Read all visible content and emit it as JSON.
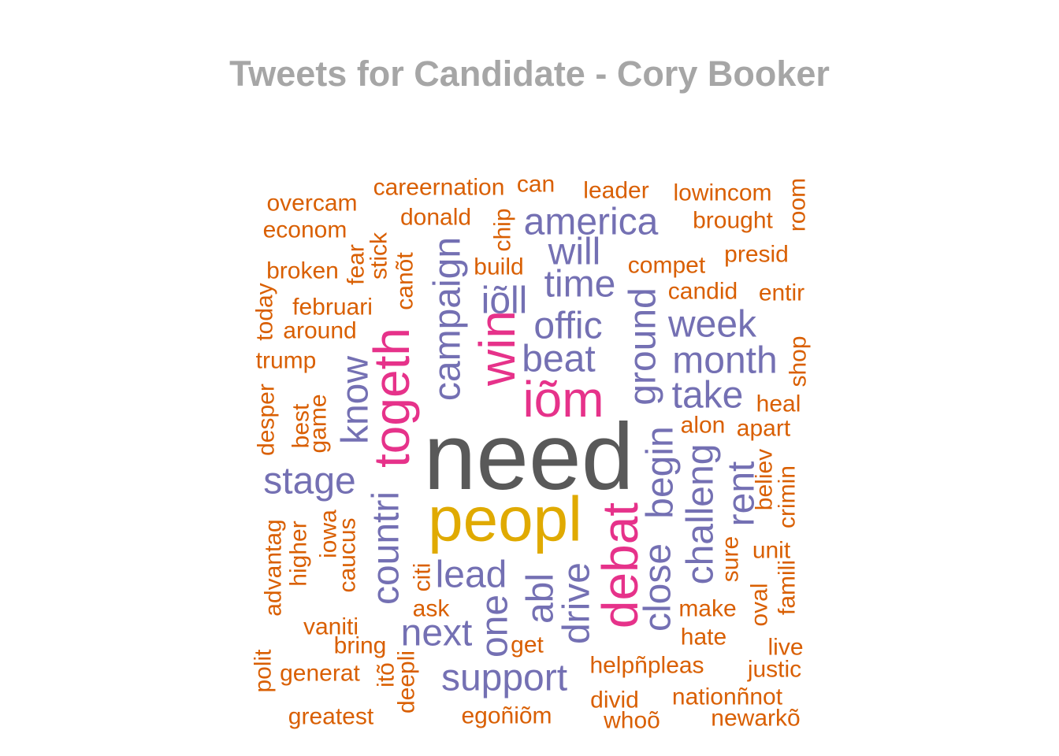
{
  "chart_data": {
    "type": "wordcloud",
    "title": "Tweets for Candidate - Cory Booker",
    "colors": {
      "title": "#a6a6a6",
      "need": "#595959",
      "peopl": "#e0aa00",
      "magenta": "#e6328a",
      "purple": "#7470b3",
      "orange": "#d95f02"
    },
    "words": [
      {
        "text": "need",
        "tier": 1,
        "color_key": "need"
      },
      {
        "text": "peopl",
        "tier": 2,
        "color_key": "peopl"
      },
      {
        "text": "togeth",
        "tier": 3,
        "color_key": "magenta"
      },
      {
        "text": "win",
        "tier": 3,
        "color_key": "magenta"
      },
      {
        "text": "debat",
        "tier": 3,
        "color_key": "magenta"
      },
      {
        "text": "iõm",
        "tier": 3,
        "color_key": "magenta"
      },
      {
        "text": "america",
        "tier": 4,
        "color_key": "purple"
      },
      {
        "text": "will",
        "tier": 4,
        "color_key": "purple"
      },
      {
        "text": "time",
        "tier": 4,
        "color_key": "purple"
      },
      {
        "text": "iõll",
        "tier": 4,
        "color_key": "purple"
      },
      {
        "text": "offic",
        "tier": 4,
        "color_key": "purple"
      },
      {
        "text": "beat",
        "tier": 4,
        "color_key": "purple"
      },
      {
        "text": "campaign",
        "tier": 4,
        "color_key": "purple"
      },
      {
        "text": "ground",
        "tier": 4,
        "color_key": "purple"
      },
      {
        "text": "week",
        "tier": 4,
        "color_key": "purple"
      },
      {
        "text": "month",
        "tier": 4,
        "color_key": "purple"
      },
      {
        "text": "take",
        "tier": 4,
        "color_key": "purple"
      },
      {
        "text": "know",
        "tier": 4,
        "color_key": "purple"
      },
      {
        "text": "stage",
        "tier": 4,
        "color_key": "purple"
      },
      {
        "text": "countri",
        "tier": 4,
        "color_key": "purple"
      },
      {
        "text": "lead",
        "tier": 4,
        "color_key": "purple"
      },
      {
        "text": "next",
        "tier": 4,
        "color_key": "purple"
      },
      {
        "text": "support",
        "tier": 4,
        "color_key": "purple"
      },
      {
        "text": "one",
        "tier": 4,
        "color_key": "purple"
      },
      {
        "text": "abl",
        "tier": 4,
        "color_key": "purple"
      },
      {
        "text": "drive",
        "tier": 4,
        "color_key": "purple"
      },
      {
        "text": "begin",
        "tier": 4,
        "color_key": "purple"
      },
      {
        "text": "close",
        "tier": 4,
        "color_key": "purple"
      },
      {
        "text": "challeng",
        "tier": 4,
        "color_key": "purple"
      },
      {
        "text": "rent",
        "tier": 4,
        "color_key": "purple"
      },
      {
        "text": "overcam",
        "tier": 5,
        "color_key": "orange"
      },
      {
        "text": "careernation",
        "tier": 5,
        "color_key": "orange"
      },
      {
        "text": "can",
        "tier": 5,
        "color_key": "orange"
      },
      {
        "text": "leader",
        "tier": 5,
        "color_key": "orange"
      },
      {
        "text": "lowincom",
        "tier": 5,
        "color_key": "orange"
      },
      {
        "text": "room",
        "tier": 5,
        "color_key": "orange"
      },
      {
        "text": "econom",
        "tier": 5,
        "color_key": "orange"
      },
      {
        "text": "donald",
        "tier": 5,
        "color_key": "orange"
      },
      {
        "text": "chip",
        "tier": 5,
        "color_key": "orange"
      },
      {
        "text": "brought",
        "tier": 5,
        "color_key": "orange"
      },
      {
        "text": "broken",
        "tier": 5,
        "color_key": "orange"
      },
      {
        "text": "fear",
        "tier": 5,
        "color_key": "orange"
      },
      {
        "text": "stick",
        "tier": 5,
        "color_key": "orange"
      },
      {
        "text": "build",
        "tier": 5,
        "color_key": "orange"
      },
      {
        "text": "compet",
        "tier": 5,
        "color_key": "orange"
      },
      {
        "text": "presid",
        "tier": 5,
        "color_key": "orange"
      },
      {
        "text": "today",
        "tier": 5,
        "color_key": "orange"
      },
      {
        "text": "canõt",
        "tier": 5,
        "color_key": "orange"
      },
      {
        "text": "februari",
        "tier": 5,
        "color_key": "orange"
      },
      {
        "text": "candid",
        "tier": 5,
        "color_key": "orange"
      },
      {
        "text": "entir",
        "tier": 5,
        "color_key": "orange"
      },
      {
        "text": "around",
        "tier": 5,
        "color_key": "orange"
      },
      {
        "text": "trump",
        "tier": 5,
        "color_key": "orange"
      },
      {
        "text": "shop",
        "tier": 5,
        "color_key": "orange"
      },
      {
        "text": "heal",
        "tier": 5,
        "color_key": "orange"
      },
      {
        "text": "desper",
        "tier": 5,
        "color_key": "orange"
      },
      {
        "text": "best",
        "tier": 5,
        "color_key": "orange"
      },
      {
        "text": "game",
        "tier": 5,
        "color_key": "orange"
      },
      {
        "text": "alon",
        "tier": 5,
        "color_key": "orange"
      },
      {
        "text": "apart",
        "tier": 5,
        "color_key": "orange"
      },
      {
        "text": "believ",
        "tier": 5,
        "color_key": "orange"
      },
      {
        "text": "crimin",
        "tier": 5,
        "color_key": "orange"
      },
      {
        "text": "advantag",
        "tier": 5,
        "color_key": "orange"
      },
      {
        "text": "higher",
        "tier": 5,
        "color_key": "orange"
      },
      {
        "text": "iowa",
        "tier": 5,
        "color_key": "orange"
      },
      {
        "text": "caucus",
        "tier": 5,
        "color_key": "orange"
      },
      {
        "text": "sure",
        "tier": 5,
        "color_key": "orange"
      },
      {
        "text": "unit",
        "tier": 5,
        "color_key": "orange"
      },
      {
        "text": "citi",
        "tier": 5,
        "color_key": "orange"
      },
      {
        "text": "ask",
        "tier": 5,
        "color_key": "orange"
      },
      {
        "text": "make",
        "tier": 5,
        "color_key": "orange"
      },
      {
        "text": "oval",
        "tier": 5,
        "color_key": "orange"
      },
      {
        "text": "famili",
        "tier": 5,
        "color_key": "orange"
      },
      {
        "text": "vaniti",
        "tier": 5,
        "color_key": "orange"
      },
      {
        "text": "bring",
        "tier": 5,
        "color_key": "orange"
      },
      {
        "text": "get",
        "tier": 5,
        "color_key": "orange"
      },
      {
        "text": "hate",
        "tier": 5,
        "color_key": "orange"
      },
      {
        "text": "live",
        "tier": 5,
        "color_key": "orange"
      },
      {
        "text": "polit",
        "tier": 5,
        "color_key": "orange"
      },
      {
        "text": "generat",
        "tier": 5,
        "color_key": "orange"
      },
      {
        "text": "itõ",
        "tier": 5,
        "color_key": "orange"
      },
      {
        "text": "deepli",
        "tier": 5,
        "color_key": "orange"
      },
      {
        "text": "helpñpleas",
        "tier": 5,
        "color_key": "orange"
      },
      {
        "text": "justic",
        "tier": 5,
        "color_key": "orange"
      },
      {
        "text": "divid",
        "tier": 5,
        "color_key": "orange"
      },
      {
        "text": "nationñnot",
        "tier": 5,
        "color_key": "orange"
      },
      {
        "text": "greatest",
        "tier": 5,
        "color_key": "orange"
      },
      {
        "text": "egoñiõm",
        "tier": 5,
        "color_key": "orange"
      },
      {
        "text": "whoõ",
        "tier": 5,
        "color_key": "orange"
      },
      {
        "text": "newarkõ",
        "tier": 5,
        "color_key": "orange"
      }
    ]
  }
}
